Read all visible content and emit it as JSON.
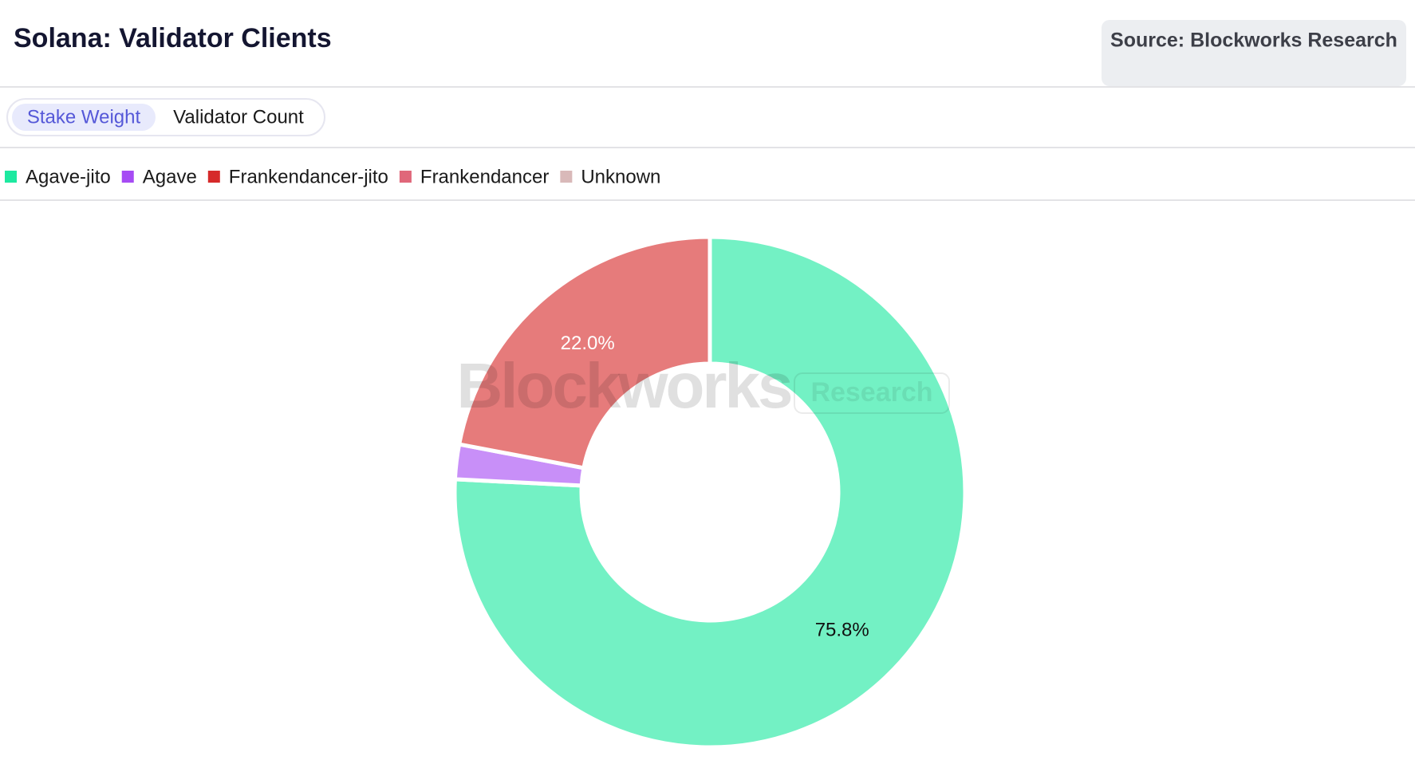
{
  "header": {
    "title": "Solana: Validator Clients",
    "source": "Source: Blockworks Research"
  },
  "tabs": [
    {
      "label": "Stake Weight",
      "active": true
    },
    {
      "label": "Validator Count",
      "active": false
    }
  ],
  "watermark": {
    "brand": "Blockworks",
    "tag": "Research"
  },
  "chart_data": {
    "type": "donut",
    "categories": [
      "Agave-jito",
      "Agave",
      "Frankendancer-jito",
      "Frankendancer",
      "Unknown"
    ],
    "values": [
      75.8,
      2.2,
      22.0,
      0,
      0
    ],
    "value_labels": [
      "75.8%",
      null,
      "22.0%",
      null,
      null
    ],
    "colors": [
      "#1de9a0",
      "#a64bf4",
      "#d62a2a",
      "#e0677a",
      "#d9b9b9"
    ],
    "slice_opacity": 0.62,
    "start_angle": 0,
    "direction": "clockwise"
  }
}
